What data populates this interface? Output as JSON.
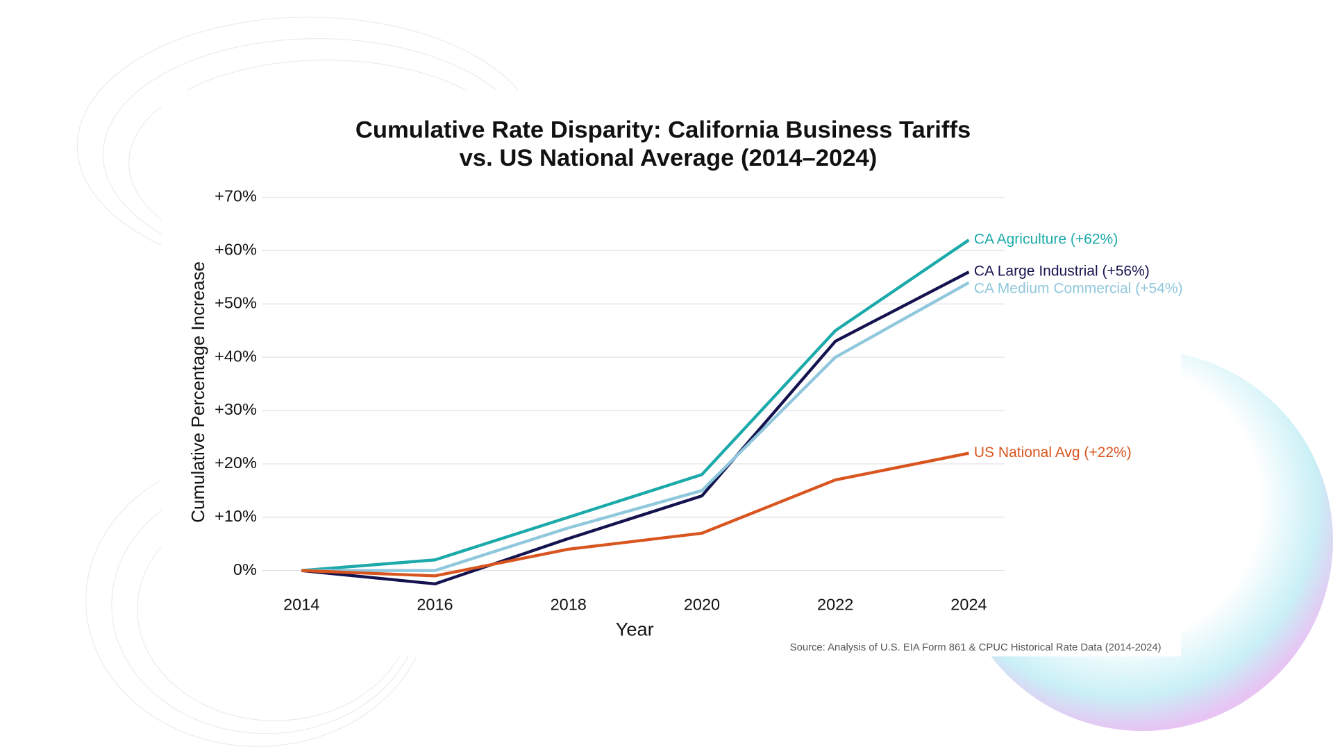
{
  "chart_data": {
    "type": "line",
    "title": [
      "Cumulative Rate Disparity: California Business Tariffs",
      "vs. US National Average (2014–2024)"
    ],
    "x_label": "Year",
    "y_label": "Cumulative Percentage Increase",
    "categories": [
      "2014",
      "2016",
      "2018",
      "2020",
      "2022",
      "2024"
    ],
    "series": [
      {
        "name": "CA Agriculture (+62%)",
        "color": "#1ba9aa",
        "values": [
          0,
          2,
          10,
          18,
          45,
          62
        ]
      },
      {
        "name": "CA Large Industrial (+56%)",
        "color": "#15134f",
        "values": [
          0,
          -2.5,
          6,
          14,
          43,
          56
        ]
      },
      {
        "name": "CA Medium Commercial (+54%)",
        "color": "#8fc7dc",
        "values": [
          0,
          0,
          8,
          15,
          40,
          54
        ]
      },
      {
        "name": "US National Avg (+22%)",
        "color": "#d9551f",
        "values": [
          0,
          -1,
          4,
          7,
          17,
          22
        ]
      }
    ],
    "ylim": [
      -4,
      70
    ],
    "yticks": [
      {
        "value": 0,
        "label": "0%"
      },
      {
        "value": 10,
        "label": "+10%"
      },
      {
        "value": 20,
        "label": "+20%"
      },
      {
        "value": 30,
        "label": "+30%"
      },
      {
        "value": 40,
        "label": "+40%"
      },
      {
        "value": 50,
        "label": "+50%"
      },
      {
        "value": 60,
        "label": "+60%"
      },
      {
        "value": 70,
        "label": "+70%"
      }
    ],
    "grid": true,
    "source": "Source: Analysis of U.S. EIA Form 861 & CPUC Historical Rate Data (2014-2024)"
  }
}
